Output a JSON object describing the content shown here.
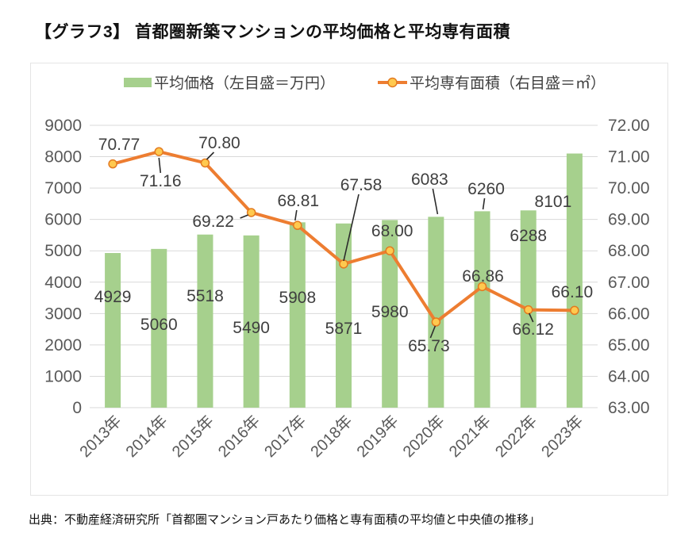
{
  "page": {
    "title": "【グラフ3】 首都圏新築マンションの平均価格と平均専有面積",
    "source": "出典：不動産経済研究所「首都圏マンション戸あたり価格と専有面積の平均値と中央値の推移」"
  },
  "chart_data": {
    "type": "bar",
    "combo": "bar+line dual axis",
    "title": "【グラフ3】 首都圏新築マンションの平均価格と平均専有面積",
    "categories": [
      "2013年",
      "2014年",
      "2015年",
      "2016年",
      "2017年",
      "2018年",
      "2019年",
      "2020年",
      "2021年",
      "2022年",
      "2023年"
    ],
    "series": [
      {
        "name": "平均価格（左目盛＝万円）",
        "type": "bar",
        "axis": "left",
        "color": "#A6D08D",
        "values": [
          4929,
          5060,
          5518,
          5490,
          5908,
          5871,
          5980,
          6083,
          6260,
          6288,
          8101
        ],
        "labels": [
          "4929",
          "5060",
          "5518",
          "5490",
          "5908",
          "5871",
          "5980",
          "6083",
          "6260",
          "6288",
          "8101"
        ]
      },
      {
        "name": "平均専有面積（右目盛＝㎡）",
        "type": "line",
        "axis": "right",
        "color": "#ED7D31",
        "marker_fill": "#FFC94F",
        "marker_stroke": "#E37A1F",
        "values": [
          70.77,
          71.16,
          70.8,
          69.22,
          68.81,
          67.58,
          68.0,
          65.73,
          66.86,
          66.12,
          66.1
        ],
        "labels": [
          "70.77",
          "71.16",
          "70.80",
          "69.22",
          "68.81",
          "67.58",
          "68.00",
          "65.73",
          "66.86",
          "66.12",
          "66.10"
        ]
      }
    ],
    "left_axis": {
      "min": 0,
      "max": 9000,
      "step": 1000,
      "ticks": [
        "9000",
        "8000",
        "7000",
        "6000",
        "5000",
        "4000",
        "3000",
        "2000",
        "1000",
        "0"
      ]
    },
    "right_axis": {
      "min": 63,
      "max": 72,
      "step": 1,
      "ticks": [
        "72.00",
        "71.00",
        "70.00",
        "69.00",
        "68.00",
        "67.00",
        "66.00",
        "65.00",
        "64.00",
        "63.00"
      ]
    },
    "grid": true,
    "legend_position": "top",
    "colors": {
      "grid": "#D9D9D9",
      "axis_text": "#595959",
      "data_label": "#3F3F3F",
      "leader_line": "#2B2B2B",
      "box_border": "#E4E4E4",
      "background": "#FFFFFF"
    }
  }
}
